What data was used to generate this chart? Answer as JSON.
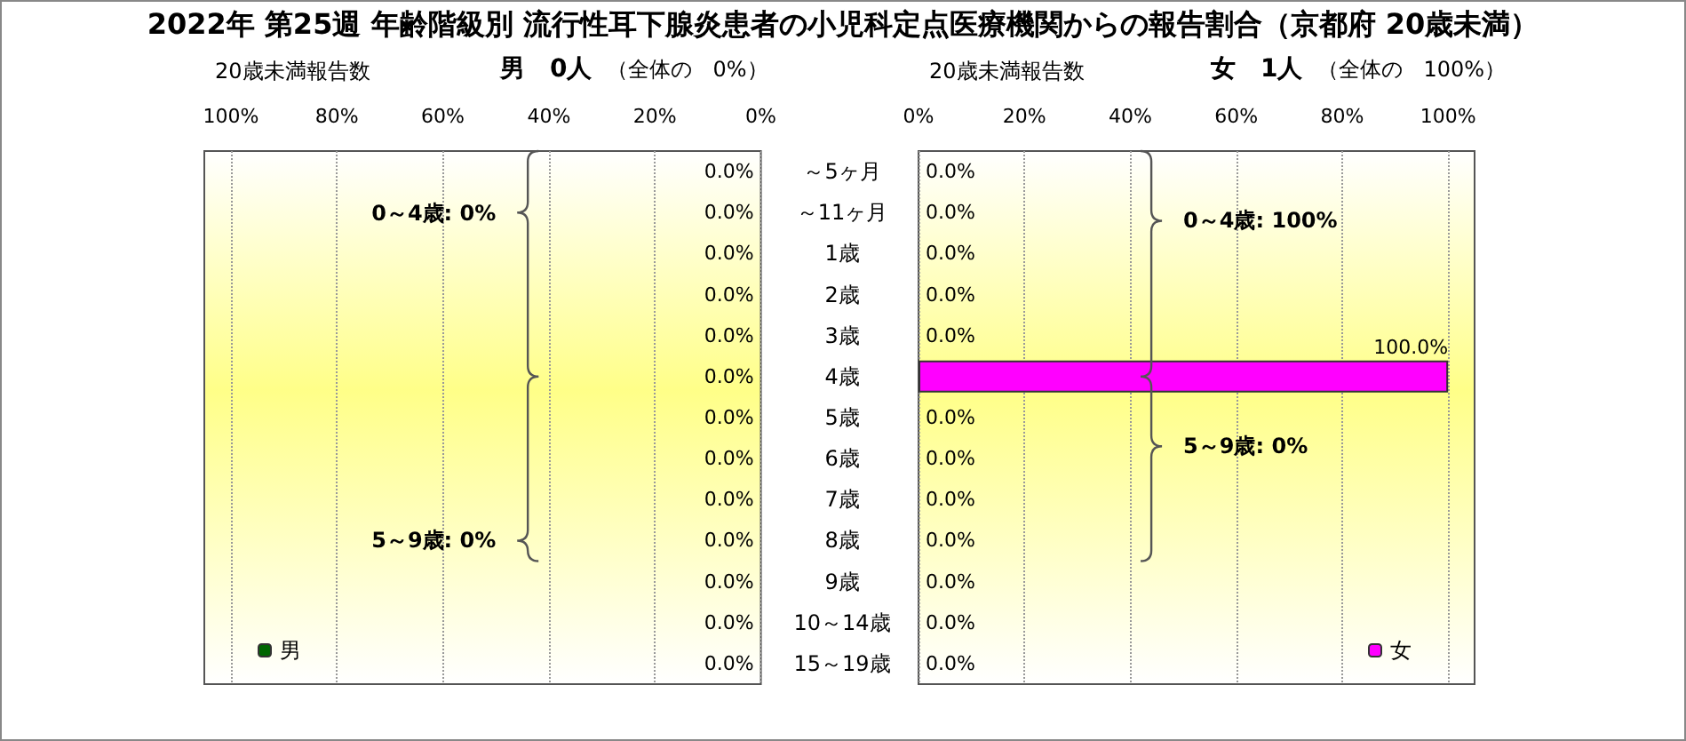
{
  "chart_data": [
    {
      "type": "bar",
      "orientation": "horizontal",
      "title": "2022年 第25週 年齢階級別 流行性耳下腺炎患者の小児科定点医療機関からの報告割合（京都府 20歳未満）",
      "subtitle": "20歳未満報告数",
      "categories": [
        null,
        null,
        null,
        null,
        null,
        null,
        null,
        null,
        null,
        null,
        null,
        null,
        null
      ],
      "series": [
        {
          "name": "男",
          "color": "#006600",
          "values": [
            0,
            0,
            0,
            0,
            0,
            0,
            0,
            0,
            0,
            0,
            0,
            0,
            0
          ],
          "value_labels": [
            "0.0%",
            "0.0%",
            "0.0%",
            "0.0%",
            "0.0%",
            "0.0%",
            "0.0%",
            "0.0%",
            "0.0%",
            "0.0%",
            "0.0%",
            "0.0%",
            "0.0%"
          ]
        }
      ],
      "xlim": [
        105,
        0
      ],
      "xticks": [
        {
          "value": 100,
          "label": "100%"
        },
        {
          "value": 80,
          "label": "80%"
        },
        {
          "value": 60,
          "label": "60%"
        },
        {
          "value": 40,
          "label": "40%"
        },
        {
          "value": 20,
          "label": "20%"
        },
        {
          "value": 0,
          "label": "0%"
        }
      ],
      "tick_labels": "x",
      "grid": "x",
      "legend": "bottom left",
      "annotations": [
        "男　0人",
        "（全体の　0%）",
        "0～4歳: 0%",
        "5～9歳: 0%"
      ]
    },
    {
      "type": "bar",
      "orientation": "horizontal",
      "subtitle": "20歳未満報告数",
      "categories": [
        "～5ヶ月",
        "～11ヶ月",
        "1歳",
        "2歳",
        "3歳",
        "4歳",
        "5歳",
        "6歳",
        "7歳",
        "8歳",
        "9歳",
        "10～14歳",
        "15～19歳"
      ],
      "series": [
        {
          "name": "女",
          "color": "#ff00ff",
          "values": [
            0,
            0,
            0,
            0,
            0,
            100,
            0,
            0,
            0,
            0,
            0,
            0,
            0
          ],
          "value_labels": [
            "0.0%",
            "0.0%",
            "0.0%",
            "0.0%",
            "0.0%",
            "100.0%",
            "0.0%",
            "0.0%",
            "0.0%",
            "0.0%",
            "0.0%",
            "0.0%",
            "0.0%"
          ]
        }
      ],
      "xlim": [
        0,
        105
      ],
      "xticks": [
        {
          "value": 0,
          "label": "0%"
        },
        {
          "value": 20,
          "label": "20%"
        },
        {
          "value": 40,
          "label": "40%"
        },
        {
          "value": 60,
          "label": "60%"
        },
        {
          "value": 80,
          "label": "80%"
        },
        {
          "value": 100,
          "label": "100%"
        }
      ],
      "grid": "x",
      "legend": "bottom right",
      "annotations": [
        "女　1人",
        "（全体の　100%）",
        "0～4歳: 100%",
        "5～9歳: 0%"
      ]
    }
  ]
}
